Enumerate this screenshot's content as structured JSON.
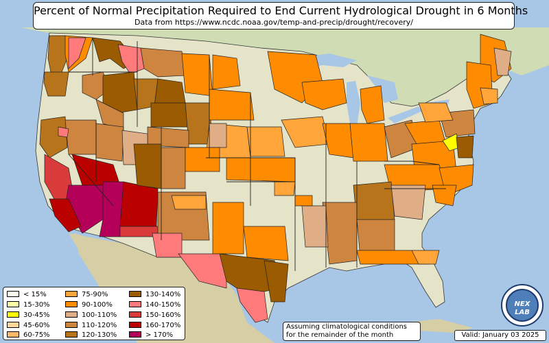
{
  "header": {
    "title": "Percent of Normal Precipitation Required to End Current Hydrological Drought in 6 Months",
    "subtitle": "Data from https://www.ncdc.noaa.gov/temp-and-precip/drought/recovery/"
  },
  "legend": {
    "items": [
      {
        "label": "< 15%",
        "color": "#fffff0"
      },
      {
        "label": "15-30%",
        "color": "#ffffa8"
      },
      {
        "label": "30-45%",
        "color": "#ffff00"
      },
      {
        "label": "45-60%",
        "color": "#ffd89a"
      },
      {
        "label": "60-75%",
        "color": "#ffb866"
      },
      {
        "label": "75-90%",
        "color": "#ffa53a"
      },
      {
        "label": "90-100%",
        "color": "#ff8c00"
      },
      {
        "label": "100-110%",
        "color": "#e0ae86"
      },
      {
        "label": "110-120%",
        "color": "#cd853f"
      },
      {
        "label": "120-130%",
        "color": "#b8741a"
      },
      {
        "label": "130-140%",
        "color": "#9b5b00"
      },
      {
        "label": "140-150%",
        "color": "#ff7a7a"
      },
      {
        "label": "150-160%",
        "color": "#d93b3b"
      },
      {
        "label": "160-170%",
        "color": "#bb0000"
      },
      {
        "label": "> 170%",
        "color": "#b40058"
      }
    ]
  },
  "note": {
    "line1": "Assuming climatological conditions",
    "line2": "for the remainder of the month"
  },
  "valid_label": "Valid: January 03 2025",
  "logo": {
    "text_top": "NEX",
    "text_bottom": "LAB"
  }
}
